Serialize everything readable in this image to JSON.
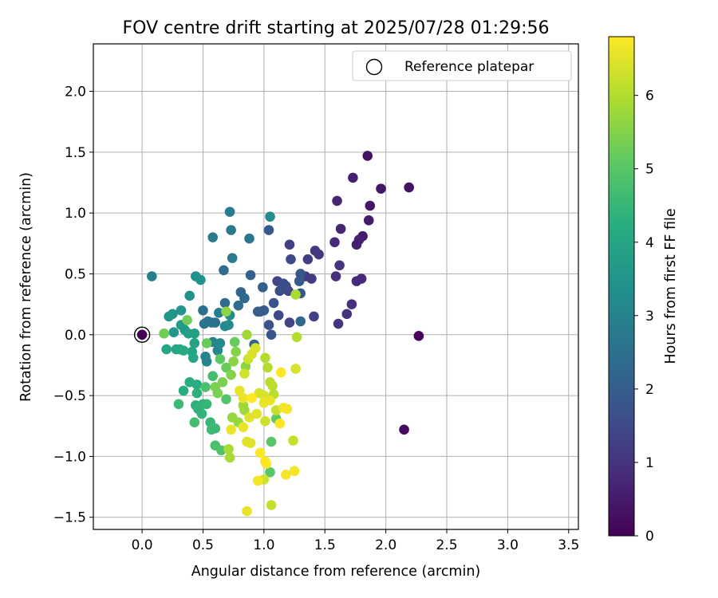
{
  "chart_data": {
    "type": "scatter",
    "title": "FOV centre drift starting at 2025/07/28 01:29:56",
    "xlabel": "Angular distance from reference (arcmin)",
    "ylabel": "Rotation from reference (arcmin)",
    "xlim": [
      -0.4,
      3.58
    ],
    "ylim": [
      -1.6,
      2.39
    ],
    "xticks": [
      0.0,
      0.5,
      1.0,
      1.5,
      2.0,
      2.5,
      3.0,
      3.5
    ],
    "yticks": [
      -1.5,
      -1.0,
      -0.5,
      0.0,
      0.5,
      1.0,
      1.5,
      2.0
    ],
    "xtick_labels": [
      "0.0",
      "0.5",
      "1.0",
      "1.5",
      "2.0",
      "2.5",
      "3.0",
      "3.5"
    ],
    "ytick_labels": [
      "−1.5",
      "−1.0",
      "−0.5",
      "0.0",
      "0.5",
      "1.0",
      "1.5",
      "2.0"
    ],
    "grid": true,
    "legend": {
      "position": "top-right",
      "entries": [
        "Reference platepar"
      ]
    },
    "reference_point": {
      "x": 0.0,
      "y": 0.0
    },
    "colorbar": {
      "label": "Hours from first FF file",
      "colormap": "viridis",
      "range": [
        0,
        6.8
      ],
      "ticks": [
        0,
        1,
        2,
        3,
        4,
        5,
        6
      ],
      "tick_labels": [
        "0",
        "1",
        "2",
        "3",
        "4",
        "5",
        "6"
      ]
    },
    "points": [
      [
        0.0,
        0.0,
        0.0
      ],
      [
        2.27,
        -0.01,
        0.1
      ],
      [
        2.15,
        -0.78,
        0.2
      ],
      [
        1.85,
        1.47,
        0.3
      ],
      [
        2.19,
        1.21,
        0.3
      ],
      [
        1.96,
        1.2,
        0.4
      ],
      [
        1.87,
        1.06,
        0.4
      ],
      [
        1.86,
        0.94,
        0.5
      ],
      [
        1.81,
        0.81,
        0.5
      ],
      [
        1.78,
        0.78,
        0.6
      ],
      [
        1.76,
        0.74,
        0.6
      ],
      [
        1.73,
        1.29,
        0.6
      ],
      [
        1.6,
        1.1,
        0.7
      ],
      [
        1.63,
        0.87,
        0.7
      ],
      [
        1.58,
        0.76,
        0.8
      ],
      [
        1.76,
        0.44,
        0.8
      ],
      [
        1.8,
        0.46,
        0.8
      ],
      [
        1.59,
        0.48,
        0.9
      ],
      [
        1.72,
        0.25,
        0.9
      ],
      [
        1.68,
        0.17,
        1.0
      ],
      [
        1.61,
        0.09,
        1.0
      ],
      [
        1.62,
        0.57,
        1.0
      ],
      [
        1.45,
        0.66,
        1.1
      ],
      [
        1.42,
        0.69,
        1.1
      ],
      [
        1.36,
        0.62,
        1.2
      ],
      [
        1.39,
        0.46,
        1.2
      ],
      [
        1.34,
        0.48,
        1.2
      ],
      [
        1.21,
        0.74,
        1.3
      ],
      [
        1.41,
        0.15,
        1.3
      ],
      [
        1.2,
        0.36,
        1.4
      ],
      [
        1.21,
        0.1,
        1.4
      ],
      [
        1.11,
        0.44,
        1.4
      ],
      [
        1.22,
        0.62,
        1.5
      ],
      [
        1.12,
        0.16,
        1.5
      ],
      [
        1.13,
        0.36,
        1.6
      ],
      [
        1.18,
        0.4,
        1.6
      ],
      [
        1.16,
        0.42,
        1.6
      ],
      [
        1.08,
        0.26,
        1.7
      ],
      [
        1.04,
        0.08,
        1.7
      ],
      [
        1.06,
        0.0,
        1.8
      ],
      [
        1.3,
        0.34,
        1.8
      ],
      [
        1.3,
        0.5,
        1.8
      ],
      [
        1.29,
        0.44,
        1.9
      ],
      [
        1.04,
        0.86,
        1.9
      ],
      [
        1.0,
        0.2,
        2.0
      ],
      [
        0.97,
        0.19,
        2.0
      ],
      [
        0.95,
        0.19,
        2.0
      ],
      [
        0.99,
        0.39,
        2.1
      ],
      [
        0.89,
        0.49,
        2.1
      ],
      [
        0.81,
        0.35,
        2.2
      ],
      [
        0.92,
        -0.08,
        2.2
      ],
      [
        1.3,
        0.11,
        2.3
      ],
      [
        0.84,
        0.3,
        2.3
      ],
      [
        0.79,
        0.24,
        2.4
      ],
      [
        0.67,
        0.53,
        2.4
      ],
      [
        0.68,
        0.26,
        2.4
      ],
      [
        0.5,
        0.2,
        2.5
      ],
      [
        0.6,
        0.1,
        2.5
      ],
      [
        0.57,
        0.1,
        2.6
      ],
      [
        0.51,
        0.09,
        2.6
      ],
      [
        0.54,
        0.11,
        2.6
      ],
      [
        0.88,
        0.79,
        2.7
      ],
      [
        0.73,
        0.86,
        2.7
      ],
      [
        0.72,
        1.01,
        2.8
      ],
      [
        0.74,
        0.63,
        2.8
      ],
      [
        0.58,
        0.8,
        2.8
      ],
      [
        0.08,
        0.48,
        2.9
      ],
      [
        0.63,
        0.18,
        2.9
      ],
      [
        0.58,
        -0.06,
        3.0
      ],
      [
        0.52,
        -0.18,
        3.0
      ],
      [
        0.53,
        -0.22,
        3.1
      ],
      [
        0.62,
        -0.13,
        3.1
      ],
      [
        0.64,
        -0.07,
        3.2
      ],
      [
        0.68,
        0.07,
        3.2
      ],
      [
        0.71,
        0.08,
        3.2
      ],
      [
        0.72,
        0.16,
        3.3
      ],
      [
        1.05,
        0.97,
        3.3
      ],
      [
        0.48,
        0.45,
        3.4
      ],
      [
        0.44,
        0.48,
        3.4
      ],
      [
        0.39,
        0.32,
        3.4
      ],
      [
        0.32,
        0.2,
        3.5
      ],
      [
        0.25,
        0.17,
        3.5
      ],
      [
        0.22,
        0.15,
        3.6
      ],
      [
        0.26,
        0.02,
        3.6
      ],
      [
        0.32,
        0.08,
        3.7
      ],
      [
        0.35,
        0.04,
        3.7
      ],
      [
        0.38,
        0.01,
        3.8
      ],
      [
        0.43,
        0.01,
        3.8
      ],
      [
        0.43,
        -0.07,
        3.9
      ],
      [
        0.41,
        -0.14,
        3.9
      ],
      [
        0.42,
        -0.19,
        4.0
      ],
      [
        0.2,
        -0.12,
        4.0
      ],
      [
        0.28,
        -0.12,
        4.0
      ],
      [
        0.31,
        -0.12,
        4.1
      ],
      [
        0.34,
        -0.13,
        4.1
      ],
      [
        0.34,
        -0.46,
        4.2
      ],
      [
        0.39,
        -0.39,
        4.2
      ],
      [
        0.45,
        -0.41,
        4.2
      ],
      [
        0.45,
        -0.48,
        4.3
      ],
      [
        0.44,
        -0.58,
        4.3
      ],
      [
        0.46,
        -0.61,
        4.4
      ],
      [
        0.49,
        -0.65,
        4.4
      ],
      [
        0.5,
        -0.57,
        4.4
      ],
      [
        0.53,
        -0.57,
        4.5
      ],
      [
        0.56,
        -0.72,
        4.5
      ],
      [
        0.57,
        -0.78,
        4.6
      ],
      [
        0.6,
        -0.77,
        4.6
      ],
      [
        0.3,
        -0.57,
        4.6
      ],
      [
        0.43,
        -0.72,
        4.7
      ],
      [
        0.58,
        -0.34,
        4.7
      ],
      [
        0.52,
        -0.43,
        4.8
      ],
      [
        0.6,
        -0.91,
        4.8
      ],
      [
        0.65,
        -0.95,
        4.9
      ],
      [
        0.69,
        -0.53,
        4.9
      ],
      [
        1.05,
        -1.13,
        5.0
      ],
      [
        1.06,
        -0.88,
        5.0
      ],
      [
        1.1,
        -0.69,
        5.1
      ],
      [
        0.64,
        -0.2,
        5.1
      ],
      [
        0.69,
        -0.27,
        5.2
      ],
      [
        0.76,
        -0.06,
        5.2
      ],
      [
        0.53,
        -0.07,
        5.2
      ],
      [
        0.18,
        0.01,
        5.3
      ],
      [
        0.37,
        0.12,
        5.3
      ],
      [
        0.62,
        -0.48,
        5.4
      ],
      [
        0.6,
        -0.43,
        5.4
      ],
      [
        0.66,
        -0.39,
        5.4
      ],
      [
        0.73,
        -0.33,
        5.5
      ],
      [
        0.77,
        -0.14,
        5.5
      ],
      [
        0.85,
        -0.26,
        5.6
      ],
      [
        0.69,
        0.19,
        5.6
      ],
      [
        0.75,
        -0.22,
        5.6
      ],
      [
        0.74,
        -0.68,
        5.7
      ],
      [
        0.79,
        -0.72,
        5.7
      ],
      [
        0.83,
        -0.58,
        5.8
      ],
      [
        0.84,
        -0.62,
        5.8
      ],
      [
        0.86,
        0.0,
        5.8
      ],
      [
        0.72,
        -1.01,
        5.9
      ],
      [
        0.71,
        -0.94,
        5.9
      ],
      [
        1.26,
        0.33,
        5.9
      ],
      [
        1.27,
        -0.02,
        6.0
      ],
      [
        1.01,
        -0.19,
        6.0
      ],
      [
        1.03,
        -0.27,
        6.0
      ],
      [
        1.05,
        -0.39,
        6.1
      ],
      [
        1.07,
        -0.42,
        6.1
      ],
      [
        1.08,
        -0.49,
        6.1
      ],
      [
        1.1,
        -0.62,
        6.2
      ],
      [
        1.24,
        -0.87,
        6.2
      ],
      [
        1.06,
        -1.4,
        6.2
      ],
      [
        1.0,
        -1.19,
        6.3
      ],
      [
        1.01,
        -0.71,
        6.3
      ],
      [
        0.84,
        -0.32,
        6.3
      ],
      [
        0.87,
        -0.2,
        6.3
      ],
      [
        0.9,
        -0.16,
        6.4
      ],
      [
        0.93,
        -0.11,
        6.4
      ],
      [
        0.96,
        -0.48,
        6.4
      ],
      [
        1.0,
        -0.5,
        6.4
      ],
      [
        1.26,
        -0.28,
        6.4
      ],
      [
        0.94,
        -0.65,
        6.5
      ],
      [
        0.88,
        -0.68,
        6.5
      ],
      [
        0.86,
        -0.88,
        6.5
      ],
      [
        0.89,
        -0.89,
        6.5
      ],
      [
        0.83,
        -0.76,
        6.6
      ],
      [
        0.86,
        -1.45,
        6.6
      ],
      [
        0.8,
        -0.46,
        6.6
      ],
      [
        0.83,
        -0.52,
        6.6
      ],
      [
        1.0,
        -0.56,
        6.6
      ],
      [
        1.05,
        -0.54,
        6.6
      ],
      [
        0.73,
        -0.78,
        6.6
      ],
      [
        1.16,
        -0.6,
        6.7
      ],
      [
        1.19,
        -0.61,
        6.7
      ],
      [
        0.95,
        -1.2,
        6.7
      ],
      [
        1.01,
        -1.04,
        6.7
      ],
      [
        1.25,
        -1.12,
        6.7
      ],
      [
        1.18,
        -1.15,
        6.7
      ],
      [
        1.13,
        -0.73,
        6.8
      ],
      [
        1.02,
        -1.06,
        6.8
      ],
      [
        0.97,
        -0.97,
        6.8
      ],
      [
        1.14,
        -0.31,
        6.8
      ],
      [
        0.9,
        -0.52,
        6.8
      ]
    ]
  }
}
